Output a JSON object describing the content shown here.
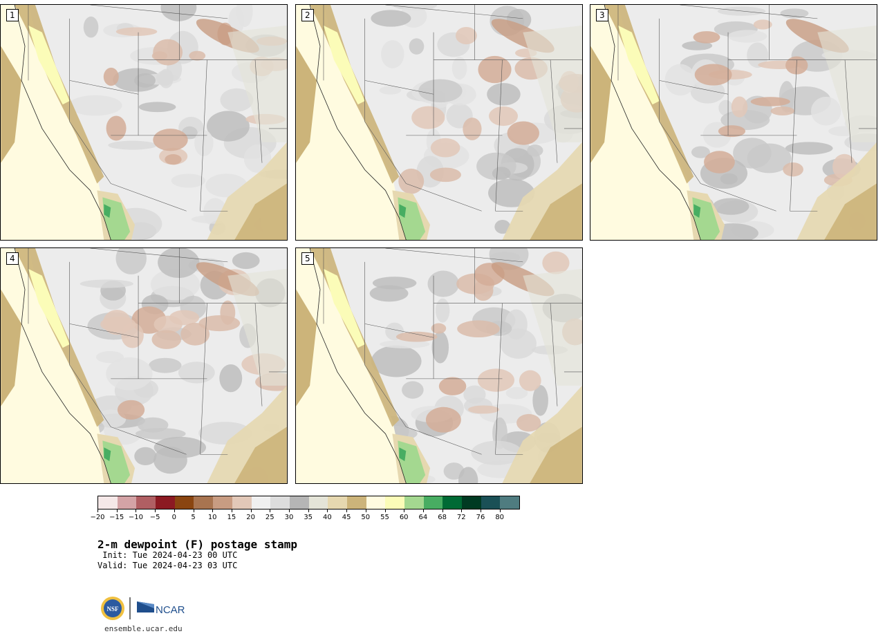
{
  "panels": [
    {
      "label": "1"
    },
    {
      "label": "2"
    },
    {
      "label": "3"
    },
    {
      "label": "4"
    },
    {
      "label": "5"
    }
  ],
  "colorbar": {
    "colors": [
      "#f5e8e8",
      "#d4a3a6",
      "#b05f63",
      "#8c1a22",
      "#8a4510",
      "#a87450",
      "#c89c82",
      "#e2c8b8",
      "#f0f0f0",
      "#dddddd",
      "#b5b5b5",
      "#e4e4d8",
      "#e6d8b0",
      "#ccb47a",
      "#fffbe0",
      "#fbfcb8",
      "#a4d890",
      "#48ad62",
      "#006a35",
      "#003a22",
      "#1a5056",
      "#4f7c80"
    ],
    "tick_labels": [
      "−20",
      "−15",
      "−10",
      "−5",
      "0",
      "5",
      "10",
      "15",
      "20",
      "25",
      "30",
      "35",
      "40",
      "45",
      "50",
      "55",
      "60",
      "64",
      "68",
      "72",
      "76",
      "80"
    ]
  },
  "title": "2-m dewpoint (F) postage stamp",
  "init": " Init: Tue 2024-04-23 00 UTC",
  "valid": "Valid: Tue 2024-04-23 03 UTC",
  "logos": {
    "nsf": "NSF",
    "ncar": "NCAR"
  },
  "site": "ensemble.ucar.edu"
}
